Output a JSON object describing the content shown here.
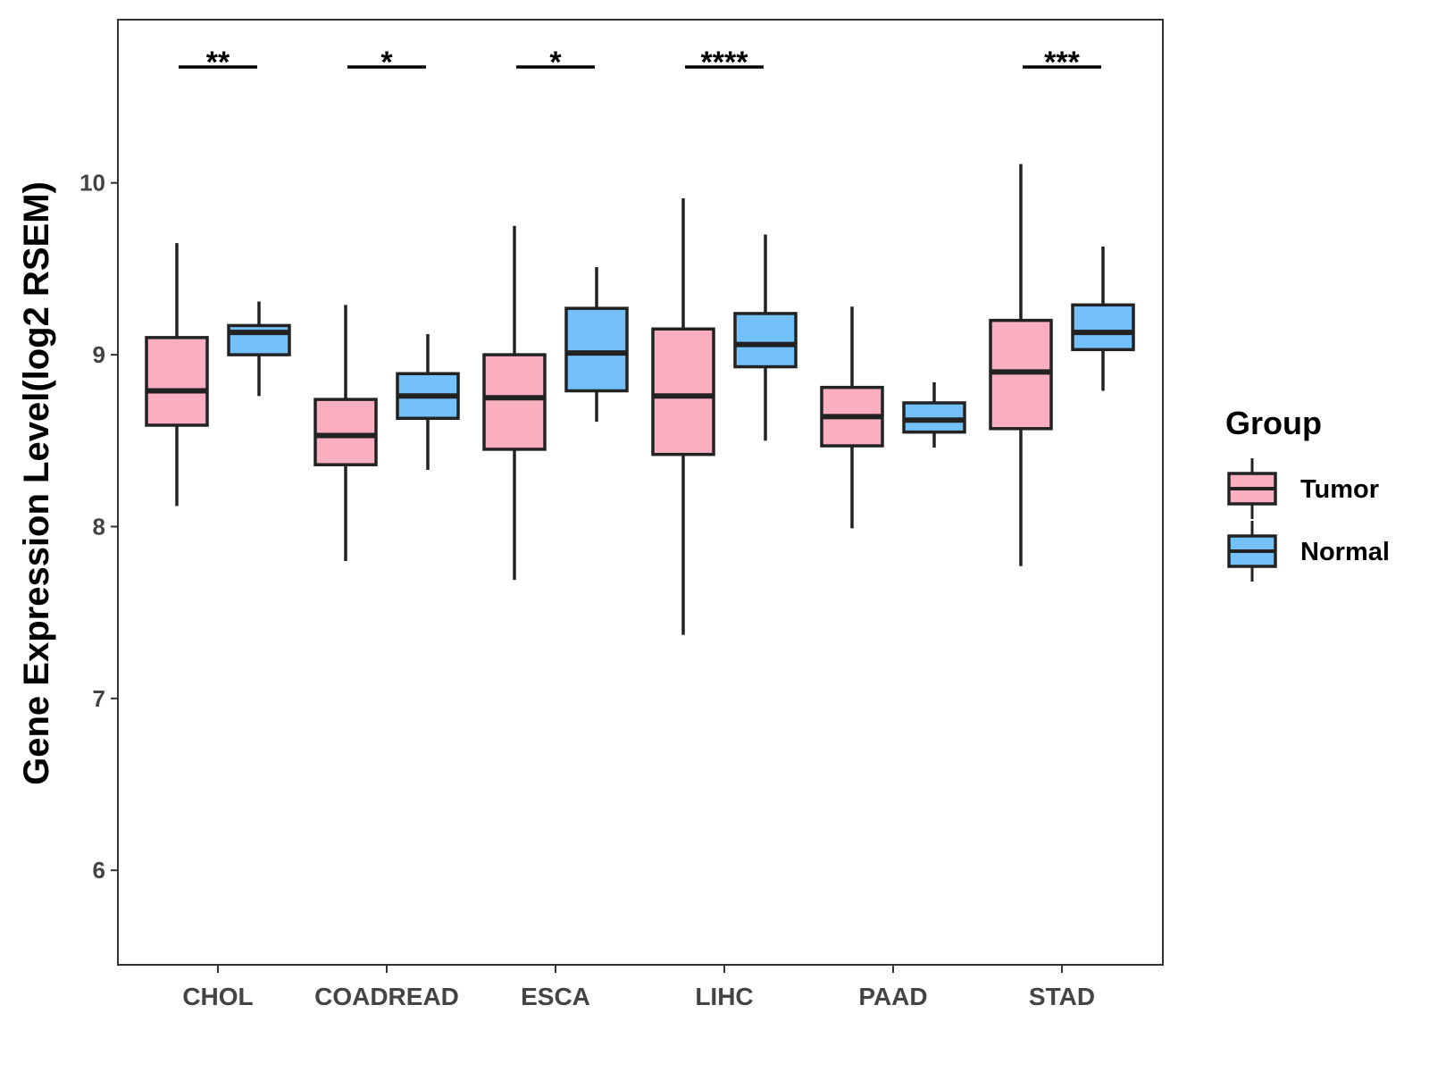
{
  "chart_data": {
    "type": "boxplot",
    "title": "",
    "xlabel": "",
    "ylabel": "Gene Expression Level(log2 RSEM)",
    "ylim": [
      5.45,
      10.95
    ],
    "yticks": [
      "6",
      "7",
      "8",
      "9",
      "10"
    ],
    "categories": [
      "CHOL",
      "COADREAD",
      "ESCA",
      "LIHC",
      "PAAD",
      "STAD"
    ],
    "legend": {
      "title": "Group",
      "position": "right",
      "entries": [
        {
          "name": "Tumor",
          "color": "#F9AFC0"
        },
        {
          "name": "Normal",
          "color": "#74C0F8"
        }
      ]
    },
    "series": [
      {
        "name": "Tumor",
        "color": "#F9AFC0",
        "boxes": [
          {
            "min": 8.12,
            "q1": 8.59,
            "median": 8.79,
            "q3": 9.1,
            "max": 9.65
          },
          {
            "min": 7.8,
            "q1": 8.36,
            "median": 8.53,
            "q3": 8.74,
            "max": 9.29
          },
          {
            "min": 7.69,
            "q1": 8.45,
            "median": 8.75,
            "q3": 9.0,
            "max": 9.75
          },
          {
            "min": 7.37,
            "q1": 8.42,
            "median": 8.76,
            "q3": 9.15,
            "max": 9.91
          },
          {
            "min": 7.99,
            "q1": 8.47,
            "median": 8.64,
            "q3": 8.81,
            "max": 9.28
          },
          {
            "min": 7.77,
            "q1": 8.57,
            "median": 8.9,
            "q3": 9.2,
            "max": 10.11
          }
        ]
      },
      {
        "name": "Normal",
        "color": "#74C0F8",
        "boxes": [
          {
            "min": 8.76,
            "q1": 9.0,
            "median": 9.13,
            "q3": 9.17,
            "max": 9.31
          },
          {
            "min": 8.33,
            "q1": 8.63,
            "median": 8.76,
            "q3": 8.89,
            "max": 9.12
          },
          {
            "min": 8.61,
            "q1": 8.79,
            "median": 9.01,
            "q3": 9.27,
            "max": 9.51
          },
          {
            "min": 8.5,
            "q1": 8.93,
            "median": 9.06,
            "q3": 9.24,
            "max": 9.7
          },
          {
            "min": 8.46,
            "q1": 8.55,
            "median": 8.62,
            "q3": 8.72,
            "max": 8.84
          },
          {
            "min": 8.79,
            "q1": 9.03,
            "median": 9.13,
            "q3": 9.29,
            "max": 9.63
          }
        ]
      }
    ],
    "significance": [
      "**",
      "*",
      "*",
      "****",
      "",
      "***"
    ],
    "grid": false
  }
}
